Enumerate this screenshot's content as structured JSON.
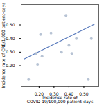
{
  "chart_data": {
    "type": "scatter",
    "xlabel": "Incidence rate of\nCOVID-19/100,000 patient-days",
    "ylabel": "Incidence rate of CRB/1,000 patient-days",
    "series": [
      {
        "type": "scatter",
        "color": "#aab8cc",
        "x": [
          0.13,
          0.18,
          0.19,
          0.21,
          0.22,
          0.28,
          0.35,
          0.38,
          0.4,
          0.42,
          0.45,
          0.53,
          0.55
        ],
        "values": [
          0.1,
          0.29,
          0.21,
          0.43,
          0.27,
          0.44,
          0.3,
          0.57,
          0.35,
          0.29,
          0.4,
          0.1,
          0.4
        ]
      },
      {
        "type": "line",
        "color": "#5577bb",
        "x": [
          0.1,
          0.57
        ],
        "values": [
          0.25,
          0.505
        ]
      }
    ],
    "xlim": [
      0.08,
      0.6
    ],
    "ylim": [
      0.05,
      0.65
    ],
    "xticks": [
      0.2,
      0.3,
      0.4,
      0.5
    ],
    "yticks": [
      0.2,
      0.3,
      0.4,
      0.5
    ],
    "grid": false
  }
}
